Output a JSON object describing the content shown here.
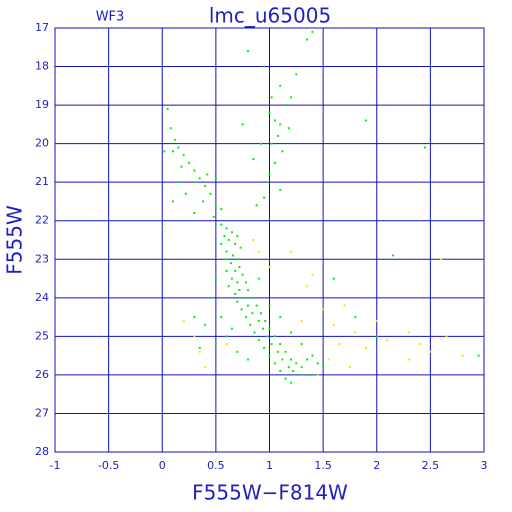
{
  "chart_data": {
    "type": "scatter",
    "title": "lmc_u65005",
    "subtitle": "WF3",
    "x_label": "F555W−F814W",
    "y_label": "F555W",
    "xlim": [
      -1,
      3
    ],
    "ylim": [
      28,
      17
    ],
    "xticks": [
      -1,
      -0.5,
      0,
      0.5,
      1,
      1.5,
      2,
      2.5,
      3
    ],
    "yticks": [
      17,
      18,
      19,
      20,
      21,
      22,
      23,
      24,
      25,
      26,
      27,
      28
    ],
    "grid": true,
    "series": [
      {
        "color": "#00ee00",
        "x": [
          0.05,
          0.08,
          0.12,
          0.15,
          0.1,
          0.2,
          0.18,
          0.25,
          0.3,
          0.35,
          0.28,
          0.4,
          0.22,
          0.45,
          0.38,
          0.5,
          0.3,
          0.48,
          0.55,
          0.42,
          0.5,
          0.02,
          0.1,
          0.15,
          0.55,
          0.6,
          0.65,
          0.58,
          0.7,
          0.62,
          0.68,
          0.55,
          0.73,
          0.6,
          0.66,
          0.7,
          0.58,
          0.64,
          0.72,
          0.68,
          0.6,
          0.75,
          0.65,
          0.7,
          0.78,
          0.62,
          0.72,
          0.8,
          0.68,
          0.76,
          0.85,
          0.7,
          0.8,
          0.88,
          0.74,
          0.84,
          0.92,
          0.78,
          0.9,
          0.96,
          0.82,
          0.94,
          1.0,
          0.86,
          0.98,
          1.05,
          0.9,
          1.02,
          1.1,
          0.95,
          1.08,
          1.15,
          1.0,
          1.12,
          1.2,
          1.05,
          1.18,
          1.25,
          1.1,
          1.22,
          1.3,
          1.35,
          1.4,
          1.28,
          1.15,
          1.45,
          1.5,
          1.2,
          1.38,
          0.5,
          0.45,
          0.55,
          0.6,
          0.5,
          0.7,
          0.8,
          0.65,
          1.1,
          1.2,
          1.3,
          0.9,
          1.0,
          0.35,
          0.4,
          0.3,
          1.0,
          1.05,
          1.1,
          1.08,
          1.02,
          1.12,
          1.05,
          1.0,
          0.98,
          1.1,
          0.95,
          1.15,
          1.02,
          1.1,
          0.92,
          1.18,
          0.88,
          0.85,
          0.75,
          1.35,
          0.8,
          1.25,
          0.95,
          1.2,
          1.9,
          2.45,
          0.0,
          2.15,
          1.6,
          1.8,
          2.0,
          2.95,
          1.4
        ],
        "values": [
          19.1,
          19.6,
          19.9,
          20.1,
          20.2,
          20.3,
          20.6,
          20.5,
          20.7,
          20.9,
          21.0,
          21.1,
          21.3,
          21.3,
          21.5,
          21.6,
          21.8,
          21.9,
          21.7,
          20.8,
          20.9,
          20.2,
          21.5,
          21.0,
          22.1,
          22.2,
          22.3,
          22.4,
          22.4,
          22.5,
          22.6,
          22.6,
          22.7,
          22.8,
          22.9,
          23.0,
          23.0,
          23.1,
          23.2,
          23.3,
          23.3,
          23.4,
          23.5,
          23.6,
          23.6,
          23.7,
          23.8,
          23.8,
          23.9,
          24.0,
          24.0,
          24.1,
          24.2,
          24.2,
          24.3,
          24.4,
          24.4,
          24.5,
          24.6,
          24.6,
          24.7,
          24.8,
          24.8,
          24.9,
          25.0,
          25.0,
          25.1,
          25.2,
          25.2,
          25.3,
          25.4,
          25.4,
          25.5,
          25.6,
          25.6,
          25.7,
          25.8,
          25.7,
          25.9,
          25.9,
          25.8,
          25.6,
          25.5,
          26.0,
          26.1,
          25.7,
          25.8,
          26.2,
          26.0,
          23.5,
          24.0,
          24.5,
          25.0,
          25.2,
          25.4,
          25.6,
          24.8,
          24.5,
          24.9,
          25.2,
          23.5,
          24.2,
          25.3,
          24.7,
          24.5,
          19.2,
          19.4,
          19.5,
          19.8,
          20.0,
          20.2,
          20.5,
          20.8,
          21.0,
          21.2,
          21.4,
          19.0,
          18.8,
          18.5,
          20.0,
          19.6,
          21.6,
          20.4,
          19.5,
          17.3,
          17.6,
          18.2,
          18.0,
          18.8,
          19.4,
          20.1,
          22.2,
          22.9,
          23.5,
          24.5,
          25.0,
          25.5,
          17.1
        ]
      },
      {
        "color": "#ffdd00",
        "x": [
          0.85,
          1.2,
          1.4,
          1.35,
          1.5,
          1.7,
          1.6,
          1.8,
          1.9,
          2.1,
          2.3,
          2.5,
          2.8,
          2.6,
          0.2,
          0.3,
          0.35,
          0.4,
          0.6,
          1.55,
          1.65,
          2.0,
          1.75,
          2.4,
          1.3,
          0.9,
          1.0,
          2.65,
          2.3,
          1.45
        ],
        "values": [
          22.5,
          22.8,
          23.4,
          23.7,
          24.3,
          24.2,
          24.7,
          24.9,
          25.3,
          25.1,
          25.6,
          25.4,
          25.5,
          23.0,
          24.6,
          25.0,
          25.4,
          25.8,
          25.2,
          25.6,
          25.2,
          24.6,
          25.8,
          25.2,
          24.6,
          22.8,
          23.2,
          25.0,
          24.9,
          26.0
        ]
      }
    ]
  }
}
